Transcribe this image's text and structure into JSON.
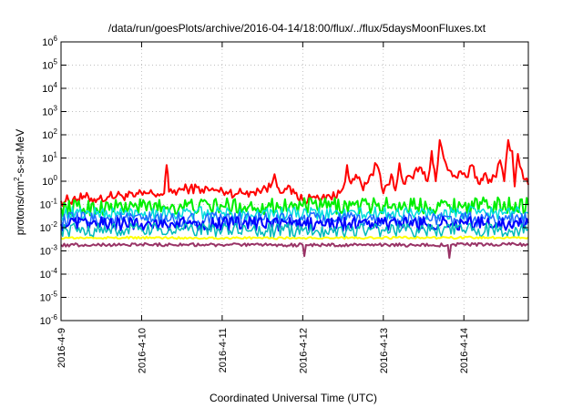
{
  "chart_data": {
    "type": "line",
    "title": "/data/run/goesPlots/archive/2016-04-14/18:00/flux/../flux/5daysMoonFluxes.txt",
    "xlabel": "Coordinated Universal Time (UTC)",
    "ylabel": {
      "prefix": "protons/cm",
      "superscript": "2",
      "suffix": "-s-sr-MeV"
    },
    "x_tick_labels": [
      "2016-4-9",
      "2016-4-10",
      "2016-4-11",
      "2016-4-12",
      "2016-4-13",
      "2016-4-14"
    ],
    "x_ticks_days": [
      0,
      1,
      2,
      3,
      4,
      5
    ],
    "xlim_days": [
      0,
      5.8
    ],
    "y_scale": "log",
    "ylim": [
      1e-06,
      1000000.0
    ],
    "y_tick_exponents": [
      -6,
      -5,
      -4,
      -3,
      -2,
      -1,
      0,
      1,
      2,
      3,
      4,
      5,
      6
    ],
    "y_tick_base": "10",
    "grid": true,
    "legend": "none",
    "series": [
      {
        "color": "#ff0000",
        "width": 2,
        "points": [
          [
            0.0,
            0.14
          ],
          [
            0.15,
            0.17
          ],
          [
            0.3,
            0.2
          ],
          [
            0.45,
            0.17
          ],
          [
            0.6,
            0.22
          ],
          [
            0.75,
            0.25
          ],
          [
            0.9,
            0.22
          ],
          [
            1.05,
            0.3
          ],
          [
            1.2,
            0.28
          ],
          [
            1.28,
            0.3
          ],
          [
            1.31,
            5.0
          ],
          [
            1.34,
            0.35
          ],
          [
            1.45,
            0.4
          ],
          [
            1.6,
            0.5
          ],
          [
            1.75,
            0.45
          ],
          [
            1.9,
            0.4
          ],
          [
            2.05,
            0.35
          ],
          [
            2.2,
            0.3
          ],
          [
            2.35,
            0.35
          ],
          [
            2.5,
            0.45
          ],
          [
            2.6,
            0.55
          ],
          [
            2.65,
            2.0
          ],
          [
            2.7,
            0.5
          ],
          [
            2.8,
            0.45
          ],
          [
            2.9,
            0.3
          ],
          [
            3.0,
            0.15
          ],
          [
            3.1,
            0.2
          ],
          [
            3.2,
            0.18
          ],
          [
            3.3,
            0.25
          ],
          [
            3.4,
            0.2
          ],
          [
            3.5,
            0.5
          ],
          [
            3.55,
            5.0
          ],
          [
            3.6,
            0.8
          ],
          [
            3.7,
            1.5
          ],
          [
            3.75,
            0.4
          ],
          [
            3.85,
            2.0
          ],
          [
            3.92,
            5.0
          ],
          [
            4.0,
            0.3
          ],
          [
            4.05,
            0.7
          ],
          [
            4.1,
            2.0
          ],
          [
            4.15,
            0.4
          ],
          [
            4.2,
            6.0
          ],
          [
            4.25,
            0.8
          ],
          [
            4.35,
            1.5
          ],
          [
            4.45,
            4.0
          ],
          [
            4.55,
            1.0
          ],
          [
            4.6,
            20
          ],
          [
            4.65,
            1.0
          ],
          [
            4.7,
            60
          ],
          [
            4.75,
            10
          ],
          [
            4.8,
            3.0
          ],
          [
            4.9,
            1.5
          ],
          [
            4.98,
            2.0
          ],
          [
            5.05,
            1.5
          ],
          [
            5.1,
            5.0
          ],
          [
            5.18,
            0.8
          ],
          [
            5.25,
            2.0
          ],
          [
            5.32,
            1.2
          ],
          [
            5.4,
            1.5
          ],
          [
            5.45,
            8.0
          ],
          [
            5.5,
            1.0
          ],
          [
            5.55,
            60
          ],
          [
            5.6,
            20
          ],
          [
            5.63,
            0.6
          ],
          [
            5.67,
            15
          ],
          [
            5.72,
            3.0
          ],
          [
            5.76,
            1.2
          ],
          [
            5.8,
            0.7
          ]
        ],
        "jitter": 0.22
      },
      {
        "color": "#00ee00",
        "width": 2,
        "points": [
          [
            0.0,
            0.07
          ],
          [
            1.0,
            0.08
          ],
          [
            2.0,
            0.085
          ],
          [
            3.0,
            0.085
          ],
          [
            4.0,
            0.09
          ],
          [
            5.0,
            0.09
          ],
          [
            5.8,
            0.095
          ]
        ],
        "jitter": 0.35
      },
      {
        "color": "#00dddd",
        "width": 1.5,
        "points": [
          [
            0.0,
            0.04
          ],
          [
            1.0,
            0.042
          ],
          [
            2.0,
            0.04
          ],
          [
            3.0,
            0.038
          ],
          [
            4.0,
            0.04
          ],
          [
            5.0,
            0.042
          ],
          [
            5.8,
            0.042
          ]
        ],
        "jitter": 0.3
      },
      {
        "color": "#1e6cff",
        "width": 1.5,
        "points": [
          [
            0.0,
            0.022
          ],
          [
            1.0,
            0.023
          ],
          [
            2.0,
            0.022
          ],
          [
            3.0,
            0.022
          ],
          [
            4.0,
            0.022
          ],
          [
            5.0,
            0.023
          ],
          [
            5.8,
            0.023
          ]
        ],
        "jitter": 0.32
      },
      {
        "color": "#0000ff",
        "width": 2,
        "points": [
          [
            0.0,
            0.014
          ],
          [
            1.0,
            0.015
          ],
          [
            2.0,
            0.015
          ],
          [
            3.0,
            0.014
          ],
          [
            4.0,
            0.015
          ],
          [
            5.0,
            0.015
          ],
          [
            5.8,
            0.016
          ]
        ],
        "jitter": 0.3
      },
      {
        "color": "#00bbbb",
        "width": 1.5,
        "points": [
          [
            0.0,
            0.008
          ],
          [
            1.0,
            0.008
          ],
          [
            2.0,
            0.008
          ],
          [
            3.0,
            0.0075
          ],
          [
            4.0,
            0.008
          ],
          [
            5.0,
            0.008
          ],
          [
            5.8,
            0.0085
          ]
        ],
        "jitter": 0.3
      },
      {
        "color": "#ffff00",
        "width": 2,
        "points": [
          [
            0.0,
            0.0036
          ],
          [
            1.0,
            0.0037
          ],
          [
            2.0,
            0.0036
          ],
          [
            3.0,
            0.0036
          ],
          [
            4.0,
            0.0037
          ],
          [
            5.0,
            0.0037
          ],
          [
            5.8,
            0.0038
          ]
        ],
        "jitter": 0.05
      },
      {
        "color": "#993366",
        "width": 2,
        "points": [
          [
            0.0,
            0.0018
          ],
          [
            1.0,
            0.0019
          ],
          [
            2.0,
            0.0018
          ],
          [
            3.0,
            0.0018
          ],
          [
            3.02,
            0.0006
          ],
          [
            3.04,
            0.0018
          ],
          [
            4.0,
            0.0018
          ],
          [
            4.8,
            0.0018
          ],
          [
            4.82,
            0.0005
          ],
          [
            4.84,
            0.0018
          ],
          [
            5.0,
            0.0019
          ],
          [
            5.8,
            0.0019
          ]
        ],
        "jitter": 0.07
      }
    ]
  }
}
